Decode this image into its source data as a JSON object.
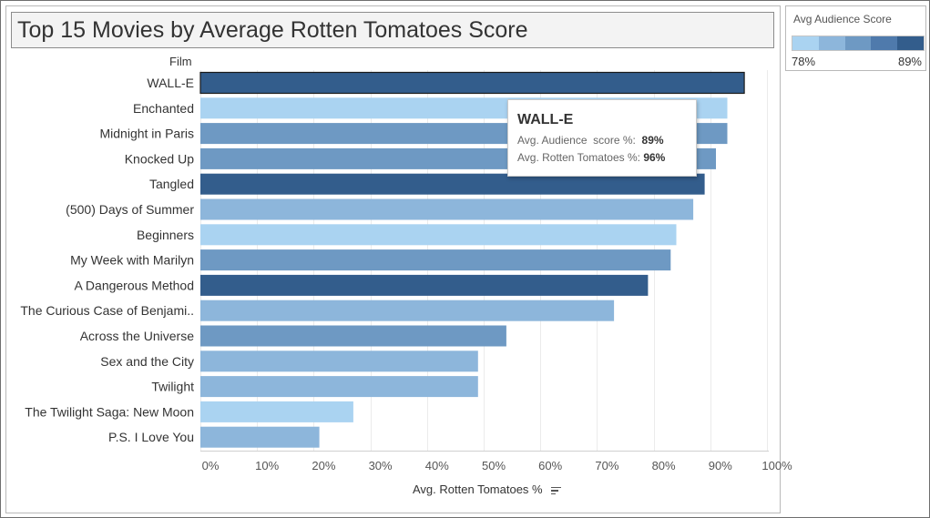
{
  "title": "Top 15 Movies by Average Rotten Tomatoes Score",
  "row_header": "Film",
  "legend": {
    "title": "Avg Audience Score",
    "min_label": "78%",
    "max_label": "89%",
    "colors": [
      "#aad3f1",
      "#8db6db",
      "#6e99c3",
      "#4f7aac",
      "#335d8c"
    ]
  },
  "tooltip": {
    "film": "WALL-E",
    "row1_label": "Avg. Audience  score %:",
    "row1_value": "89%",
    "row2_label": "Avg. Rotten Tomatoes %:",
    "row2_value": "96%"
  },
  "chart_data": {
    "type": "bar",
    "orientation": "horizontal",
    "title": "Top 15 Movies by Average Rotten Tomatoes Score",
    "xlabel": "Avg. Rotten Tomatoes %",
    "ylabel": "Film",
    "xlim": [
      0,
      100
    ],
    "xticks": [
      "0%",
      "10%",
      "20%",
      "30%",
      "40%",
      "50%",
      "60%",
      "70%",
      "80%",
      "90%",
      "100%"
    ],
    "grid": true,
    "color_by": "Avg Audience Score",
    "categories": [
      "WALL-E",
      "Enchanted",
      "Midnight in Paris",
      "Knocked Up",
      "Tangled",
      "(500) Days of Summer",
      "Beginners",
      "My Week with Marilyn",
      "A Dangerous Method",
      "The Curious Case of Benjami..",
      "Across the Universe",
      "Sex and the City",
      "Twilight",
      "The Twilight Saga: New Moon",
      "P.S. I Love You"
    ],
    "values": [
      96,
      93,
      93,
      91,
      89,
      87,
      84,
      83,
      79,
      73,
      54,
      49,
      49,
      27,
      21
    ],
    "bar_colors": [
      "#335d8c",
      "#aad3f1",
      "#6e99c3",
      "#6e99c3",
      "#335d8c",
      "#8db6db",
      "#aad3f1",
      "#6e99c3",
      "#335d8c",
      "#8db6db",
      "#6e99c3",
      "#8db6db",
      "#8db6db",
      "#aad3f1",
      "#8db6db"
    ],
    "highlighted": "WALL-E"
  }
}
